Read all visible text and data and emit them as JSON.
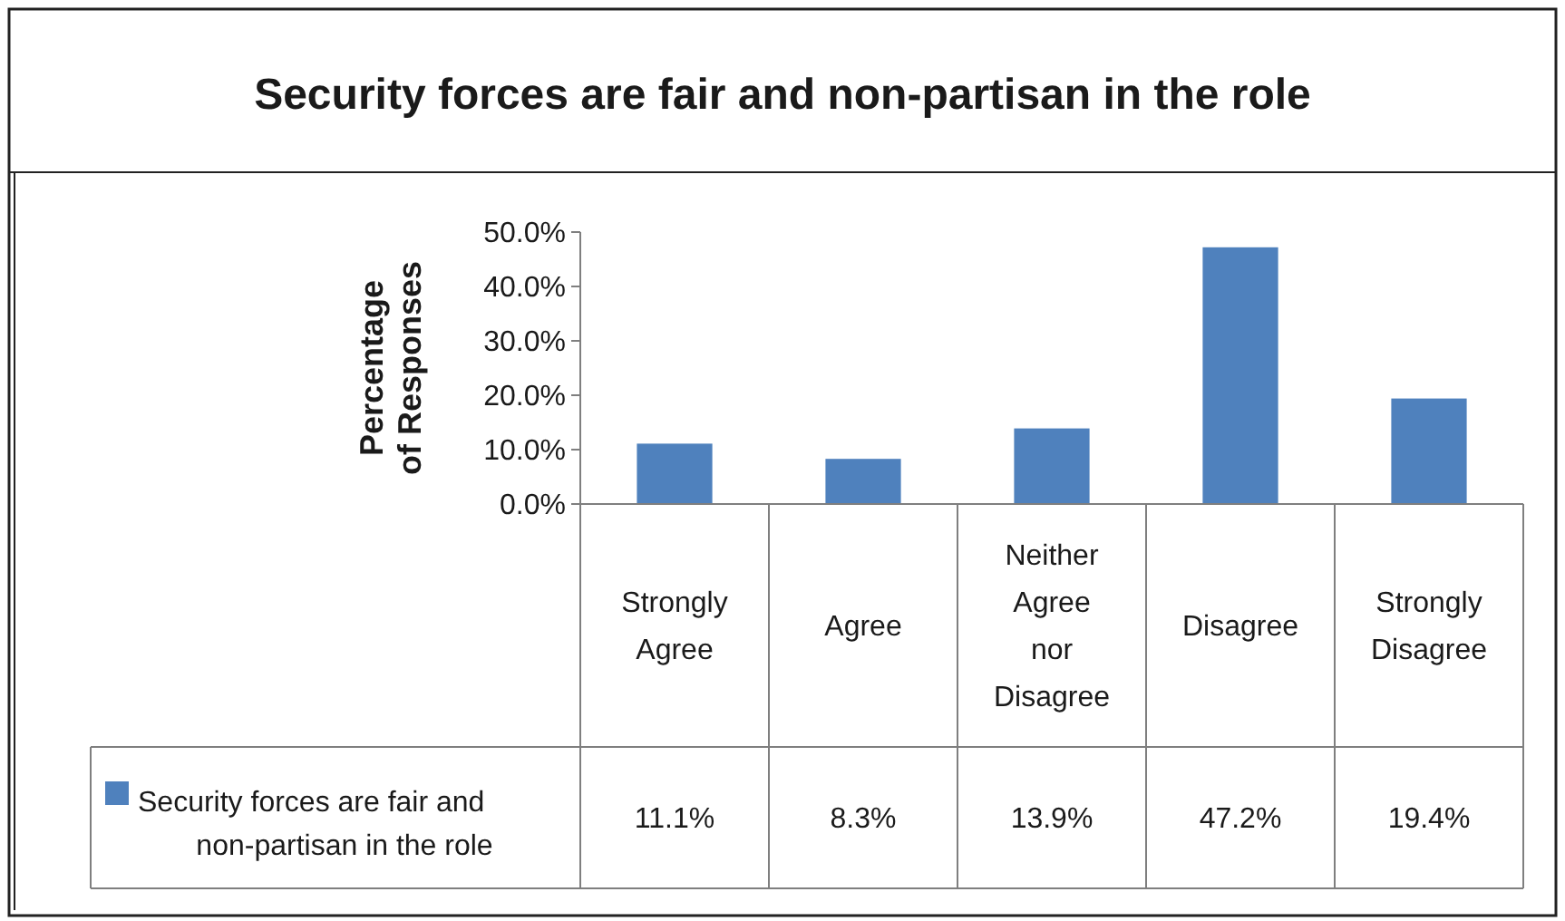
{
  "chart_data": {
    "type": "bar",
    "title": "Security forces are fair and non-partisan in the role",
    "ylabel": "Percentage of Responses",
    "categories": [
      "Strongly Agree",
      "Agree",
      "Neither Agree nor Disagree",
      "Disagree",
      "Strongly Disagree"
    ],
    "series": [
      {
        "name": "Security forces are fair and non-partisan in the role",
        "color": "#4f81bd",
        "values": [
          11.1,
          8.3,
          13.9,
          47.2,
          19.4
        ],
        "value_labels": [
          "11.1%",
          "8.3%",
          "13.9%",
          "47.2%",
          "19.4%"
        ]
      }
    ],
    "ylim": [
      0,
      50
    ],
    "yticks": [
      {
        "value": 0,
        "label": "0.0%"
      },
      {
        "value": 10,
        "label": "10.0%"
      },
      {
        "value": 20,
        "label": "20.0%"
      },
      {
        "value": 30,
        "label": "30.0%"
      },
      {
        "value": 40,
        "label": "40.0%"
      },
      {
        "value": 50,
        "label": "50.0%"
      }
    ],
    "legend": "bottom",
    "grid": false
  }
}
